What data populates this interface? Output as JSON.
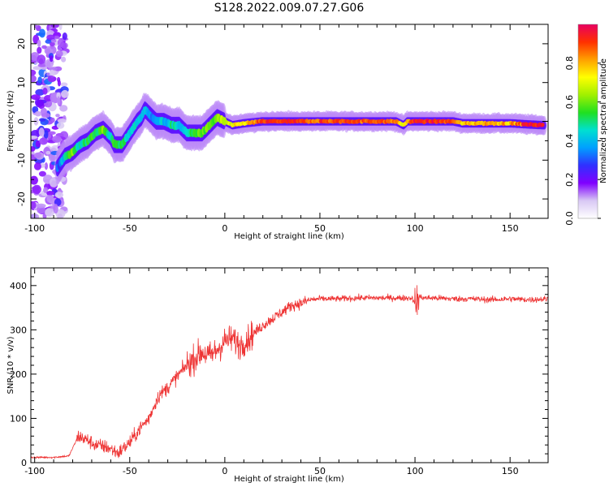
{
  "title": "S128.2022.009.07.27.G06",
  "chart_data": [
    {
      "type": "heatmap",
      "xlabel": "Height of straight line (km)",
      "ylabel": "Frequency (Hz)",
      "xlim": [
        -102,
        170
      ],
      "ylim": [
        -25,
        25
      ],
      "x_ticks": [
        -100,
        -50,
        0,
        50,
        100,
        150
      ],
      "y_ticks": [
        -20,
        -10,
        0,
        10,
        20
      ],
      "colorbar": {
        "label": "Normalized spectral amplitude",
        "range": [
          0,
          1
        ],
        "ticks": [
          0.0,
          0.2,
          0.4,
          0.6,
          0.8
        ],
        "colors": [
          "#ffffff",
          "#d8c8f4",
          "#8000ff",
          "#3030ff",
          "#00a0ff",
          "#00e0d0",
          "#20e020",
          "#a0f000",
          "#ffff00",
          "#ffa000",
          "#ff3000",
          "#e80060"
        ]
      },
      "ridge": [
        {
          "x": -88,
          "y": -12,
          "a": 0.3
        },
        {
          "x": -84,
          "y": -9,
          "a": 0.5
        },
        {
          "x": -80,
          "y": -8,
          "a": 0.6
        },
        {
          "x": -76,
          "y": -6,
          "a": 0.45
        },
        {
          "x": -72,
          "y": -5,
          "a": 0.55
        },
        {
          "x": -68,
          "y": -3,
          "a": 0.5
        },
        {
          "x": -64,
          "y": -2,
          "a": 0.6
        },
        {
          "x": -60,
          "y": -4,
          "a": 0.45
        },
        {
          "x": -58,
          "y": -6,
          "a": 0.55
        },
        {
          "x": -54,
          "y": -6,
          "a": 0.5
        },
        {
          "x": -50,
          "y": -3,
          "a": 0.45
        },
        {
          "x": -46,
          "y": 0,
          "a": 0.4
        },
        {
          "x": -44,
          "y": 1,
          "a": 0.45
        },
        {
          "x": -42,
          "y": 3,
          "a": 0.4
        },
        {
          "x": -40,
          "y": 2,
          "a": 0.35
        },
        {
          "x": -36,
          "y": 0,
          "a": 0.4
        },
        {
          "x": -32,
          "y": 0,
          "a": 0.4
        },
        {
          "x": -28,
          "y": -1,
          "a": 0.45
        },
        {
          "x": -24,
          "y": -1,
          "a": 0.4
        },
        {
          "x": -20,
          "y": -3,
          "a": 0.45
        },
        {
          "x": -16,
          "y": -3,
          "a": 0.55
        },
        {
          "x": -12,
          "y": -3,
          "a": 0.6
        },
        {
          "x": -8,
          "y": -1,
          "a": 0.55
        },
        {
          "x": -4,
          "y": 1,
          "a": 0.6
        },
        {
          "x": 0,
          "y": 0,
          "a": 0.65
        },
        {
          "x": 4,
          "y": -1,
          "a": 0.7
        },
        {
          "x": 10,
          "y": -0.5,
          "a": 0.75
        },
        {
          "x": 20,
          "y": 0,
          "a": 0.9
        },
        {
          "x": 30,
          "y": 0,
          "a": 0.92
        },
        {
          "x": 40,
          "y": 0,
          "a": 0.9
        },
        {
          "x": 50,
          "y": 0,
          "a": 0.88
        },
        {
          "x": 60,
          "y": 0,
          "a": 0.9
        },
        {
          "x": 70,
          "y": 0,
          "a": 0.9
        },
        {
          "x": 80,
          "y": 0,
          "a": 0.88
        },
        {
          "x": 90,
          "y": 0,
          "a": 0.85
        },
        {
          "x": 94,
          "y": -1,
          "a": 0.7
        },
        {
          "x": 96,
          "y": 0,
          "a": 0.8
        },
        {
          "x": 100,
          "y": 0,
          "a": 0.95
        },
        {
          "x": 110,
          "y": 0,
          "a": 0.92
        },
        {
          "x": 120,
          "y": 0,
          "a": 0.88
        },
        {
          "x": 125,
          "y": -0.5,
          "a": 0.75
        },
        {
          "x": 130,
          "y": -0.5,
          "a": 0.8
        },
        {
          "x": 140,
          "y": -0.5,
          "a": 0.82
        },
        {
          "x": 150,
          "y": -0.5,
          "a": 0.8
        },
        {
          "x": 160,
          "y": -0.8,
          "a": 0.95
        },
        {
          "x": 168,
          "y": -1,
          "a": 0.95
        }
      ]
    },
    {
      "type": "line",
      "xlabel": "Height of straight line (km)",
      "ylabel": "SNR (10 * v/v)",
      "xlim": [
        -102,
        170
      ],
      "ylim": [
        0,
        440
      ],
      "x_ticks": [
        -100,
        -50,
        0,
        50,
        100,
        150
      ],
      "y_ticks": [
        0,
        100,
        200,
        300,
        400
      ],
      "color": "#ee3333",
      "series": [
        {
          "x": [
            -102,
            -90,
            -82,
            -77,
            -72,
            -68,
            -62,
            -56,
            -50,
            -45,
            -40,
            -35,
            -30,
            -25,
            -20,
            -16,
            -12,
            -8,
            -4,
            0,
            4,
            8,
            12,
            16,
            20,
            25,
            30,
            35,
            40,
            45,
            50,
            60,
            70,
            80,
            90,
            98,
            100,
            102,
            105,
            110,
            120,
            130,
            140,
            150,
            160,
            170
          ],
          "y": [
            12,
            12,
            15,
            60,
            50,
            40,
            35,
            22,
            45,
            75,
            100,
            150,
            170,
            195,
            220,
            235,
            250,
            240,
            255,
            275,
            280,
            265,
            280,
            295,
            310,
            325,
            340,
            355,
            360,
            368,
            370,
            370,
            372,
            372,
            372,
            372,
            365,
            375,
            372,
            372,
            370,
            370,
            368,
            370,
            368,
            370
          ]
        }
      ]
    }
  ]
}
